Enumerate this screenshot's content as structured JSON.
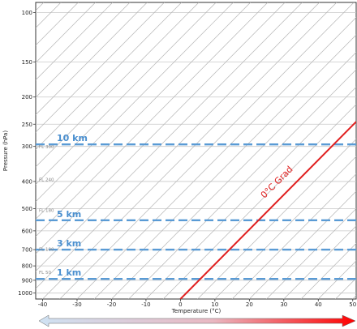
{
  "chart_data": {
    "type": "line",
    "title": "",
    "xlabel": "Temperature (°C)",
    "ylabel": "Pressure (hPa)",
    "xlim": [
      -42,
      51
    ],
    "ylim": [
      1050,
      92
    ],
    "y_scale": "log",
    "x_ticks": [
      -40,
      -30,
      -20,
      -10,
      0,
      10,
      20,
      30,
      40,
      50
    ],
    "y_ticks": [
      100,
      150,
      200,
      250,
      300,
      400,
      500,
      600,
      700,
      800,
      900,
      1000
    ],
    "grid": true,
    "skewed_isotherms": true,
    "series": [
      {
        "name": "0°C Grad",
        "color": "#e02020",
        "points": [
          [
            0,
            1050
          ],
          [
            51,
            245
          ]
        ]
      }
    ],
    "reference_levels": [
      {
        "label": "10 km",
        "pressure": 295,
        "color": "#5a9bd5"
      },
      {
        "label": "5 km",
        "pressure": 550,
        "color": "#5a9bd5"
      },
      {
        "label": "3 km",
        "pressure": 700,
        "color": "#5a9bd5"
      },
      {
        "label": "1 km",
        "pressure": 890,
        "color": "#5a9bd5"
      }
    ],
    "flight_levels": [
      {
        "label": "FL 300",
        "pressure": 301
      },
      {
        "label": "FL 240",
        "pressure": 393
      },
      {
        "label": "FL 180",
        "pressure": 506
      },
      {
        "label": "FL 100",
        "pressure": 697
      },
      {
        "label": "FL 50",
        "pressure": 843
      }
    ],
    "temperature_arrow": {
      "cold_color": "#cfe2f3",
      "warm_color": "#ff0000"
    }
  }
}
